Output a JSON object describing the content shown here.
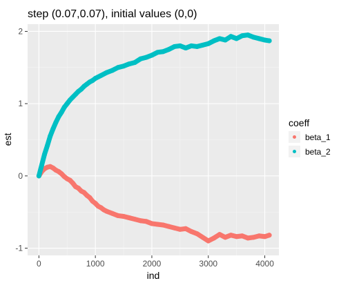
{
  "chart_data": {
    "type": "scatter",
    "title": "step (0.07,0.07), initial values (0,0)",
    "xlabel": "ind",
    "ylabel": "est",
    "xlim": [
      -200,
      4250
    ],
    "ylim": [
      -1.1,
      2.1
    ],
    "x_ticks": [
      0,
      1000,
      2000,
      3000,
      4000
    ],
    "y_ticks": [
      -1,
      0,
      1,
      2
    ],
    "x_tick_labels": [
      "0",
      "1000",
      "2000",
      "3000",
      "4000"
    ],
    "y_tick_labels": [
      "-1",
      "0",
      "1",
      "2"
    ],
    "grid": true,
    "legend": {
      "title": "coeff",
      "placement": "right"
    },
    "series": [
      {
        "name": "beta_1",
        "color": "#F8766D",
        "points": [
          [
            0,
            0.0
          ],
          [
            50,
            0.06
          ],
          [
            100,
            0.1
          ],
          [
            150,
            0.12
          ],
          [
            200,
            0.13
          ],
          [
            250,
            0.11
          ],
          [
            300,
            0.08
          ],
          [
            350,
            0.06
          ],
          [
            400,
            0.03
          ],
          [
            450,
            -0.01
          ],
          [
            500,
            -0.04
          ],
          [
            550,
            -0.06
          ],
          [
            600,
            -0.1
          ],
          [
            650,
            -0.15
          ],
          [
            700,
            -0.17
          ],
          [
            750,
            -0.21
          ],
          [
            800,
            -0.23
          ],
          [
            850,
            -0.27
          ],
          [
            900,
            -0.3
          ],
          [
            950,
            -0.35
          ],
          [
            1000,
            -0.38
          ],
          [
            1050,
            -0.42
          ],
          [
            1100,
            -0.44
          ],
          [
            1150,
            -0.47
          ],
          [
            1200,
            -0.49
          ],
          [
            1300,
            -0.52
          ],
          [
            1400,
            -0.55
          ],
          [
            1500,
            -0.56
          ],
          [
            1600,
            -0.58
          ],
          [
            1700,
            -0.6
          ],
          [
            1800,
            -0.62
          ],
          [
            1900,
            -0.63
          ],
          [
            2000,
            -0.66
          ],
          [
            2100,
            -0.67
          ],
          [
            2200,
            -0.68
          ],
          [
            2300,
            -0.7
          ],
          [
            2400,
            -0.72
          ],
          [
            2500,
            -0.74
          ],
          [
            2600,
            -0.73
          ],
          [
            2700,
            -0.77
          ],
          [
            2800,
            -0.8
          ],
          [
            2900,
            -0.85
          ],
          [
            3000,
            -0.9
          ],
          [
            3100,
            -0.86
          ],
          [
            3200,
            -0.81
          ],
          [
            3300,
            -0.85
          ],
          [
            3400,
            -0.82
          ],
          [
            3500,
            -0.84
          ],
          [
            3600,
            -0.83
          ],
          [
            3700,
            -0.86
          ],
          [
            3800,
            -0.85
          ],
          [
            3900,
            -0.83
          ],
          [
            4000,
            -0.84
          ],
          [
            4080,
            -0.82
          ]
        ]
      },
      {
        "name": "beta_2",
        "color": "#00BFC4",
        "points": [
          [
            0,
            0.0
          ],
          [
            50,
            0.15
          ],
          [
            100,
            0.3
          ],
          [
            150,
            0.42
          ],
          [
            200,
            0.55
          ],
          [
            250,
            0.65
          ],
          [
            300,
            0.74
          ],
          [
            350,
            0.82
          ],
          [
            400,
            0.88
          ],
          [
            450,
            0.95
          ],
          [
            500,
            1.0
          ],
          [
            550,
            1.05
          ],
          [
            600,
            1.09
          ],
          [
            650,
            1.13
          ],
          [
            700,
            1.17
          ],
          [
            750,
            1.2
          ],
          [
            800,
            1.24
          ],
          [
            850,
            1.27
          ],
          [
            900,
            1.3
          ],
          [
            950,
            1.32
          ],
          [
            1000,
            1.35
          ],
          [
            1100,
            1.39
          ],
          [
            1200,
            1.43
          ],
          [
            1300,
            1.46
          ],
          [
            1400,
            1.5
          ],
          [
            1500,
            1.52
          ],
          [
            1600,
            1.55
          ],
          [
            1700,
            1.57
          ],
          [
            1800,
            1.62
          ],
          [
            1900,
            1.64
          ],
          [
            2000,
            1.67
          ],
          [
            2100,
            1.71
          ],
          [
            2200,
            1.72
          ],
          [
            2300,
            1.75
          ],
          [
            2400,
            1.79
          ],
          [
            2500,
            1.8
          ],
          [
            2600,
            1.77
          ],
          [
            2700,
            1.8
          ],
          [
            2800,
            1.79
          ],
          [
            2900,
            1.81
          ],
          [
            3000,
            1.83
          ],
          [
            3100,
            1.87
          ],
          [
            3200,
            1.9
          ],
          [
            3300,
            1.88
          ],
          [
            3400,
            1.93
          ],
          [
            3500,
            1.9
          ],
          [
            3600,
            1.94
          ],
          [
            3700,
            1.95
          ],
          [
            3800,
            1.92
          ],
          [
            3900,
            1.9
          ],
          [
            4000,
            1.88
          ],
          [
            4080,
            1.87
          ]
        ]
      }
    ]
  }
}
